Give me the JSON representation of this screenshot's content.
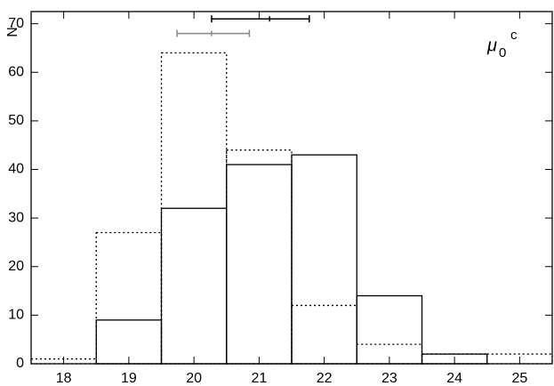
{
  "chart_data": {
    "type": "histogram",
    "y_label": "N",
    "annotation": {
      "symbol": "μ",
      "subscript": "0",
      "superscript": "c"
    },
    "bins": [
      17.5,
      18.5,
      19.5,
      20.5,
      21.5,
      22.5,
      23.5,
      24.5,
      25.5
    ],
    "series": [
      {
        "style": "solid",
        "color": "#000000",
        "values": [
          0,
          9,
          32,
          41,
          43,
          14,
          2,
          0
        ]
      },
      {
        "style": "dotted",
        "color": "#000000",
        "values": [
          1,
          27,
          64,
          44,
          12,
          4,
          2,
          2
        ]
      }
    ],
    "error_bars": [
      {
        "color": "#000000",
        "y": 71,
        "x": 21.16,
        "xmin": 20.27,
        "xmax": 21.77
      },
      {
        "color": "#888888",
        "y": 68,
        "x": 20.27,
        "xmin": 19.74,
        "xmax": 20.85
      }
    ],
    "xlim": [
      17.5,
      25.5
    ],
    "ylim": [
      0,
      72.5
    ],
    "xticks": [
      18,
      19,
      20,
      21,
      22,
      23,
      24,
      25
    ],
    "yticks": [
      0,
      10,
      20,
      30,
      40,
      50,
      60,
      70
    ]
  }
}
